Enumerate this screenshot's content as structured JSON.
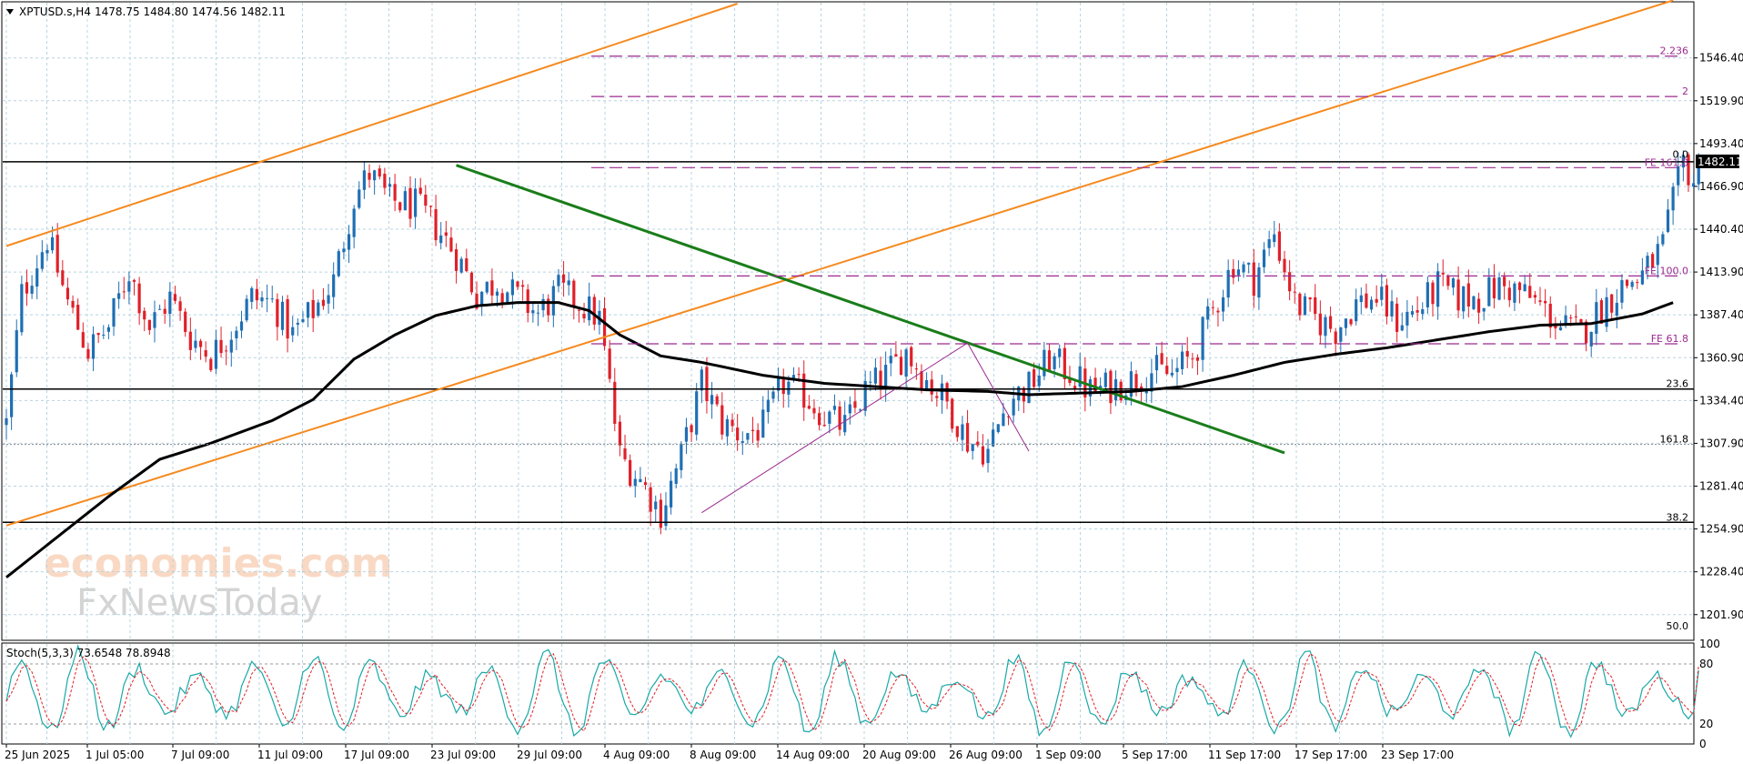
{
  "header": {
    "symbol": "XPTUSD.s,H4",
    "ohlc": "1478.75 1484.80 1474.56 1482.11"
  },
  "stoch_header": "Stoch(5,3,3) 73.6548 78.8948",
  "current_price_label": "1482.11",
  "watermark": {
    "line1": "economies.com",
    "line2": "FxNewsToday"
  },
  "colors": {
    "bull": "#1f6fb4",
    "bear": "#e0202a",
    "ma": "#000000",
    "channel": "#f58a1f",
    "trend": "#1a7d1a",
    "fib": "#9b2a8f",
    "grid": "#b8d4e0",
    "stoch_main": "#1aa8a8",
    "stoch_signal": "#e0202a"
  },
  "chart_data": {
    "type": "candlestick",
    "title": "XPTUSD.s,H4",
    "ylim": [
      1186,
      1580
    ],
    "y_ticks": [
      "1546.40",
      "1519.90",
      "1493.40",
      "1466.90",
      "1440.40",
      "1413.90",
      "1387.40",
      "1360.90",
      "1334.40",
      "1307.90",
      "1281.40",
      "1254.90",
      "1228.40",
      "1201.90"
    ],
    "x_ticks": [
      "25 Jun 2025",
      "1 Jul 05:00",
      "7 Jul 09:00",
      "11 Jul 09:00",
      "17 Jul 09:00",
      "23 Jul 09:00",
      "29 Jul 09:00",
      "4 Aug 09:00",
      "8 Aug 09:00",
      "14 Aug 09:00",
      "20 Aug 09:00",
      "26 Aug 09:00",
      "1 Sep 09:00",
      "5 Sep 17:00",
      "11 Sep 17:00",
      "17 Sep 17:00",
      "23 Sep 17:00"
    ],
    "price_path": [
      [
        0,
        1320
      ],
      [
        3,
        1400
      ],
      [
        8,
        1435
      ],
      [
        12,
        1395
      ],
      [
        16,
        1365
      ],
      [
        20,
        1380
      ],
      [
        24,
        1415
      ],
      [
        28,
        1380
      ],
      [
        32,
        1398
      ],
      [
        36,
        1374
      ],
      [
        40,
        1362
      ],
      [
        44,
        1378
      ],
      [
        48,
        1398
      ],
      [
        52,
        1395
      ],
      [
        56,
        1375
      ],
      [
        60,
        1390
      ],
      [
        64,
        1408
      ],
      [
        68,
        1460
      ],
      [
        71,
        1475
      ],
      [
        75,
        1458
      ],
      [
        80,
        1455
      ],
      [
        84,
        1442
      ],
      [
        88,
        1425
      ],
      [
        92,
        1400
      ],
      [
        96,
        1408
      ],
      [
        100,
        1398
      ],
      [
        104,
        1388
      ],
      [
        108,
        1402
      ],
      [
        112,
        1395
      ],
      [
        116,
        1385
      ],
      [
        120,
        1300
      ],
      [
        124,
        1285
      ],
      [
        128,
        1265
      ],
      [
        132,
        1300
      ],
      [
        136,
        1345
      ],
      [
        140,
        1320
      ],
      [
        144,
        1313
      ],
      [
        148,
        1318
      ],
      [
        152,
        1345
      ],
      [
        156,
        1338
      ],
      [
        160,
        1325
      ],
      [
        164,
        1318
      ],
      [
        168,
        1340
      ],
      [
        172,
        1350
      ],
      [
        176,
        1365
      ],
      [
        180,
        1347
      ],
      [
        184,
        1333
      ],
      [
        188,
        1310
      ],
      [
        192,
        1303
      ],
      [
        196,
        1335
      ],
      [
        200,
        1343
      ],
      [
        204,
        1360
      ],
      [
        208,
        1352
      ],
      [
        212,
        1340
      ],
      [
        216,
        1343
      ],
      [
        220,
        1347
      ],
      [
        224,
        1353
      ],
      [
        228,
        1350
      ],
      [
        232,
        1362
      ],
      [
        236,
        1390
      ],
      [
        240,
        1420
      ],
      [
        244,
        1410
      ],
      [
        248,
        1438
      ],
      [
        252,
        1395
      ],
      [
        256,
        1385
      ],
      [
        260,
        1378
      ],
      [
        264,
        1395
      ],
      [
        268,
        1398
      ],
      [
        272,
        1384
      ],
      [
        276,
        1390
      ],
      [
        280,
        1405
      ],
      [
        284,
        1398
      ],
      [
        288,
        1398
      ],
      [
        292,
        1405
      ],
      [
        296,
        1402
      ],
      [
        300,
        1393
      ],
      [
        304,
        1380
      ],
      [
        308,
        1376
      ],
      [
        312,
        1392
      ],
      [
        316,
        1405
      ],
      [
        320,
        1412
      ],
      [
        324,
        1430
      ],
      [
        328,
        1482
      ],
      [
        330,
        1470
      ],
      [
        331,
        1482
      ]
    ],
    "moving_average": [
      [
        0,
        1225
      ],
      [
        10,
        1250
      ],
      [
        20,
        1275
      ],
      [
        30,
        1298
      ],
      [
        40,
        1308
      ],
      [
        52,
        1322
      ],
      [
        60,
        1335
      ],
      [
        68,
        1360
      ],
      [
        76,
        1375
      ],
      [
        84,
        1387
      ],
      [
        92,
        1393
      ],
      [
        100,
        1395
      ],
      [
        108,
        1395
      ],
      [
        114,
        1390
      ],
      [
        120,
        1375
      ],
      [
        128,
        1362
      ],
      [
        136,
        1358
      ],
      [
        148,
        1350
      ],
      [
        160,
        1345
      ],
      [
        170,
        1343
      ],
      [
        180,
        1341
      ],
      [
        192,
        1340
      ],
      [
        200,
        1338
      ],
      [
        210,
        1339
      ],
      [
        220,
        1340
      ],
      [
        230,
        1343
      ],
      [
        240,
        1350
      ],
      [
        250,
        1358
      ],
      [
        260,
        1363
      ],
      [
        270,
        1367
      ],
      [
        280,
        1372
      ],
      [
        290,
        1377
      ],
      [
        300,
        1381
      ],
      [
        310,
        1382
      ],
      [
        320,
        1388
      ],
      [
        326,
        1395
      ]
    ],
    "lines": {
      "horizontal_levels": [
        1482.11,
        1341.5,
        1259
      ],
      "orange_channel_upper": [
        [
          0,
          1430
        ],
        [
          143,
          1580
        ]
      ],
      "orange_channel_lower": [
        [
          0,
          1257
        ],
        [
          326,
          1582
        ]
      ],
      "green_trendline": [
        [
          88,
          1480
        ],
        [
          250,
          1302
        ]
      ],
      "fib_swing": [
        [
          136,
          1265
        ],
        [
          188,
          1370
        ],
        [
          200,
          1303
        ]
      ]
    },
    "levels": [
      {
        "label": "2.236",
        "value": 1547.5
      },
      {
        "label": "2",
        "value": 1522.5
      },
      {
        "label": "0.0",
        "value": 1483.5
      },
      {
        "label": "FE 161.8",
        "value": 1478.5
      },
      {
        "label": "FE 100.0",
        "value": 1411.5
      },
      {
        "label": "FE 61.8",
        "value": 1369.5
      },
      {
        "label": "23.6",
        "value": 1341.5
      },
      {
        "label": "161.8",
        "value": 1307.2
      },
      {
        "label": "38.2",
        "value": 1259
      },
      {
        "label": "50.0",
        "value": 1191.5
      }
    ],
    "stochastic": {
      "name": "Stoch(5,3,3)",
      "main": 73.6548,
      "signal": 78.8948,
      "ylim": [
        0,
        100
      ],
      "ticks": [
        "100",
        "80",
        "20",
        "0"
      ],
      "levels": [
        80,
        20
      ]
    }
  }
}
